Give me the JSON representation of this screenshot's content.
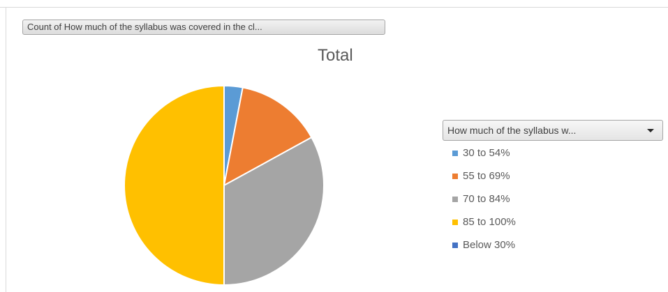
{
  "field_button": {
    "label": "Count of How much of the syllabus was covered in the cl..."
  },
  "legend_filter": {
    "label": "How much of the syllabus w..."
  },
  "chart_data": {
    "type": "pie",
    "title": "Total",
    "categories": [
      "30 to 54%",
      "55 to 69%",
      "70 to 84%",
      "85 to 100%",
      "Below 30%"
    ],
    "values": [
      3,
      14,
      33,
      50,
      0
    ],
    "colors": [
      "#5B9BD5",
      "#ED7D31",
      "#A5A5A5",
      "#FFC000",
      "#4472C4"
    ],
    "legend": "right"
  }
}
